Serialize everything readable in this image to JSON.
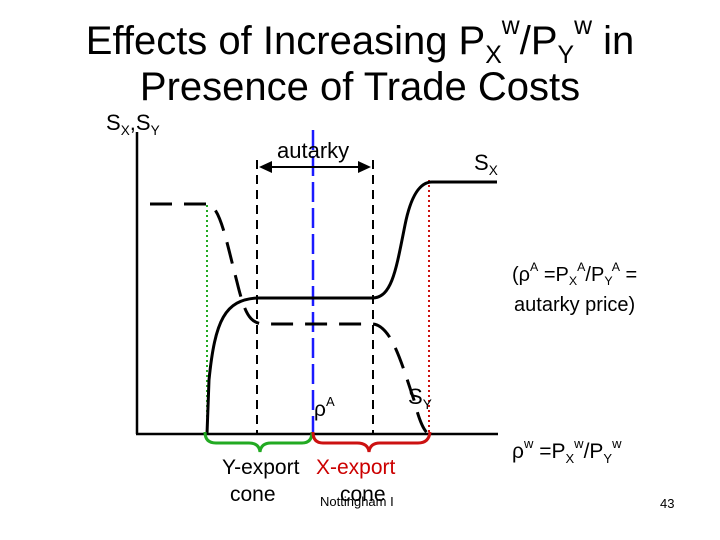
{
  "title": {
    "line1": {
      "pre": "Effects of Increasing P",
      "sub1": "X",
      "sup1": "w",
      "mid": "/P",
      "sub2": "Y",
      "sup2": "w",
      "post": " in"
    },
    "line2": "Presence of Trade Costs"
  },
  "axis": {
    "ylabel": {
      "s1": "S",
      "x": "X",
      "comma": ",",
      "s2": "S",
      "y": "Y"
    }
  },
  "labels": {
    "autarky": "autarky",
    "sx": {
      "s": "S",
      "sub": "X"
    },
    "sy": {
      "s": "S",
      "sub": "Y"
    },
    "rhoA": {
      "rho": "ρ",
      "sup": "A"
    },
    "autarky_price": {
      "l1_pre": "(ρ",
      "l1_supA": "A",
      "l1_mid": " =P",
      "l1_subX": "X",
      "l1_supA2": "A",
      "l1_slash": "/P",
      "l1_subY": "Y",
      "l1_supA3": "A",
      "l1_post": " =",
      "l2": "autarky price)"
    },
    "rhoW": {
      "rho": "ρ",
      "sup": "w",
      "mid": " =P",
      "subX": "X",
      "supW1": "w",
      "slash": "/P",
      "subY": "Y",
      "supW2": "w"
    },
    "y_export": "Y-export",
    "x_export": "X-export",
    "cone1": "cone",
    "cone2": "cone",
    "footer": "Nottingham I",
    "page": "43"
  },
  "colors": {
    "axis": "#000000",
    "curve": "#000000",
    "blue": "#1a1aff",
    "green": "#22aa22",
    "red": "#cc1111",
    "red_text": "#cc0000"
  }
}
